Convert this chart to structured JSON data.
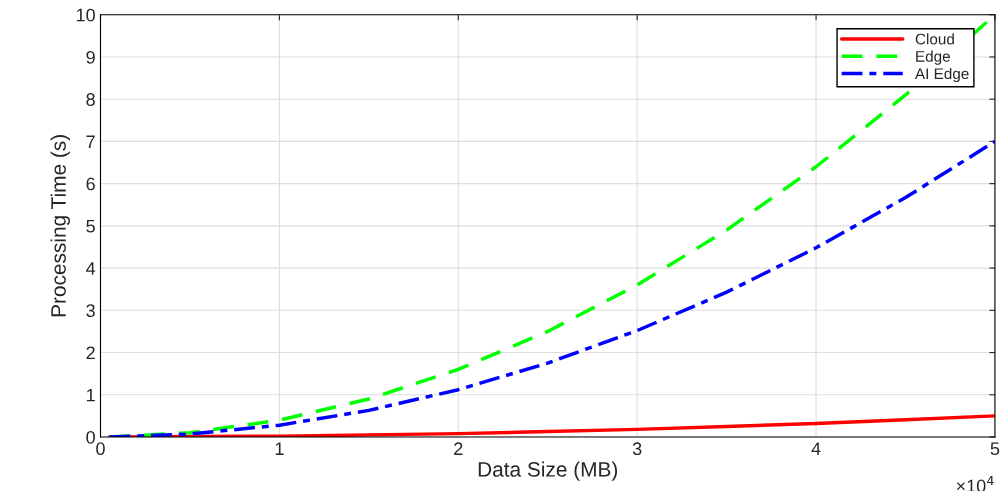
{
  "chart_data": {
    "type": "line",
    "xlabel": "Data Size (MB)",
    "ylabel": "Processing Time (s)",
    "x": [
      0.05,
      0.5,
      1,
      1.5,
      2,
      2.5,
      3,
      3.5,
      4,
      4.5,
      5
    ],
    "series": [
      {
        "name": "Cloud",
        "color": "#ff0000",
        "line_style": "solid",
        "values": [
          0,
          0.01,
          0.02,
          0.05,
          0.08,
          0.13,
          0.18,
          0.25,
          0.32,
          0.41,
          0.5
        ]
      },
      {
        "name": "Edge",
        "color": "#00ff00",
        "line_style": "dashed",
        "values": [
          0,
          0.1,
          0.4,
          0.9,
          1.6,
          2.5,
          3.6,
          4.9,
          6.4,
          8.1,
          10
        ]
      },
      {
        "name": "AI Edge",
        "color": "#0000ff",
        "line_style": "dashdot",
        "values": [
          0,
          0.07,
          0.28,
          0.63,
          1.12,
          1.75,
          2.52,
          3.43,
          4.48,
          5.67,
          7.0
        ]
      }
    ],
    "xlim": [
      0,
      5
    ],
    "xticks": [
      0,
      1,
      2,
      3,
      4,
      5
    ],
    "ylim": [
      0,
      10
    ],
    "yticks": [
      0,
      1,
      2,
      3,
      4,
      5,
      6,
      7,
      8,
      9,
      10
    ],
    "annotations": [
      "×10$^{4}$"
    ],
    "grid": true,
    "legend": "top right"
  }
}
